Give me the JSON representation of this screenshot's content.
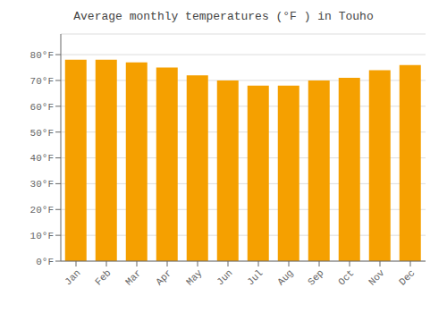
{
  "chart_data": {
    "type": "bar",
    "title": "Average monthly temperatures (°F ) in Touho",
    "categories": [
      "Jan",
      "Feb",
      "Mar",
      "Apr",
      "May",
      "Jun",
      "Jul",
      "Aug",
      "Sep",
      "Oct",
      "Nov",
      "Dec"
    ],
    "values": [
      78,
      78,
      77,
      75,
      72,
      70,
      68,
      68,
      70,
      71,
      74,
      76
    ],
    "color": "#F5A000",
    "ylim": [
      0,
      88
    ],
    "yticks": [
      {
        "value": 0,
        "label": "0°F"
      },
      {
        "value": 10,
        "label": "10°F"
      },
      {
        "value": 20,
        "label": "20°F"
      },
      {
        "value": 30,
        "label": "30°F"
      },
      {
        "value": 40,
        "label": "40°F"
      },
      {
        "value": 50,
        "label": "50°F"
      },
      {
        "value": 60,
        "label": "60°F"
      },
      {
        "value": 70,
        "label": "70°F"
      },
      {
        "value": 80,
        "label": "80°F"
      }
    ],
    "grid": true
  }
}
